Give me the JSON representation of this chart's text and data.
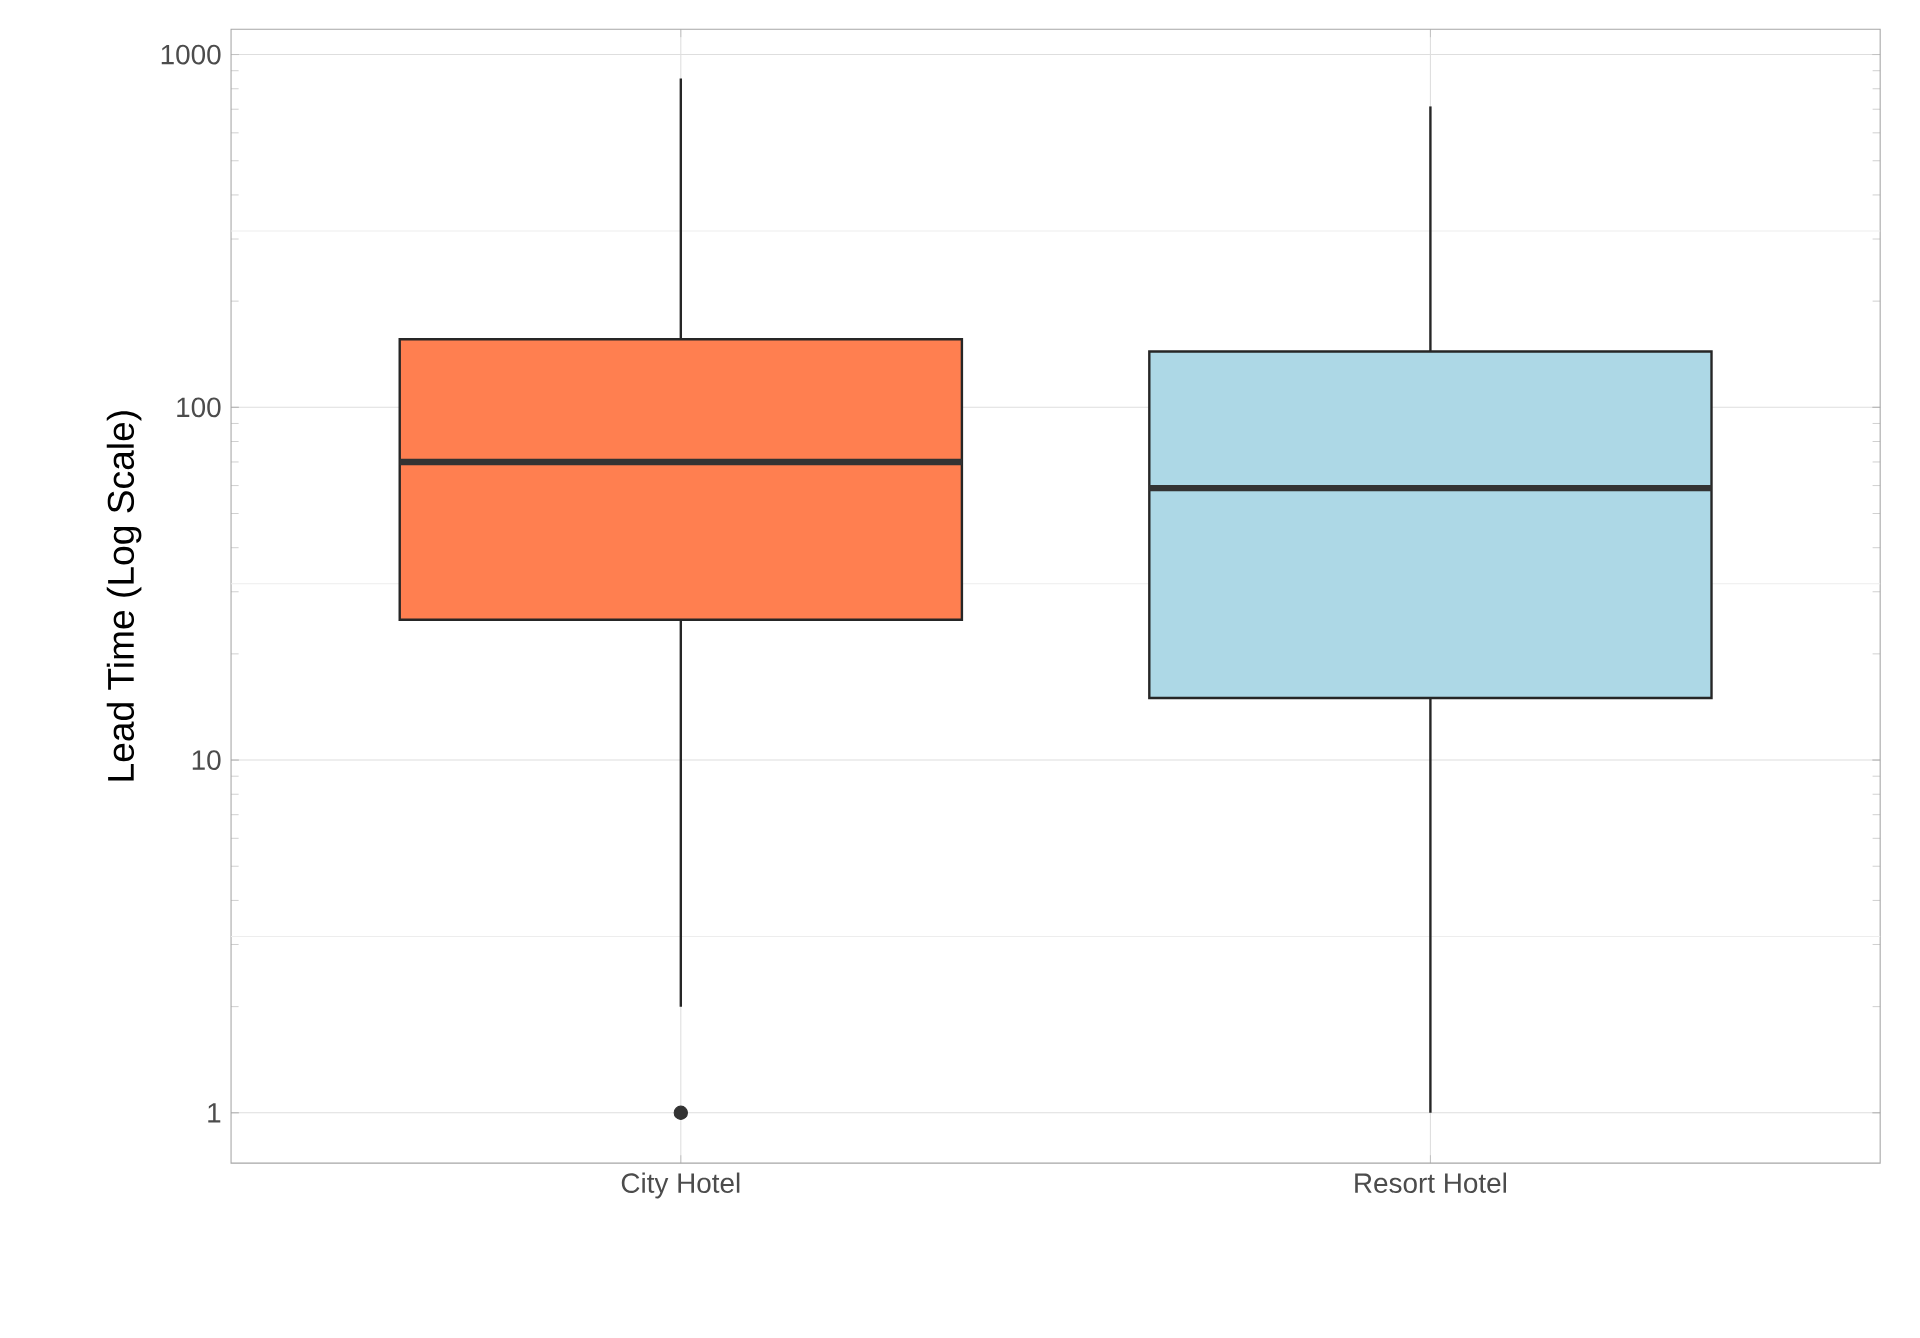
{
  "chart_data": {
    "type": "box",
    "ylabel": "Lead Time (Log Scale)",
    "categories": [
      "City Hotel",
      "Resort Hotel"
    ],
    "colors": [
      "#ff7f50",
      "#add8e6"
    ],
    "boxes": [
      {
        "low": 2,
        "q1": 25,
        "median": 70,
        "q3": 156,
        "high": 855,
        "outliers": [
          1
        ]
      },
      {
        "low": 1,
        "q1": 15,
        "median": 59,
        "q3": 144,
        "high": 713
      }
    ],
    "log": "y",
    "ylim": [
      0.72,
      1180
    ],
    "yticks": [
      1,
      {
        "value": 3.162,
        "label": null
      },
      10,
      {
        "value": 31.62,
        "label": null
      },
      100,
      {
        "value": 316.2,
        "label": null
      },
      1000
    ],
    "grid": true
  }
}
